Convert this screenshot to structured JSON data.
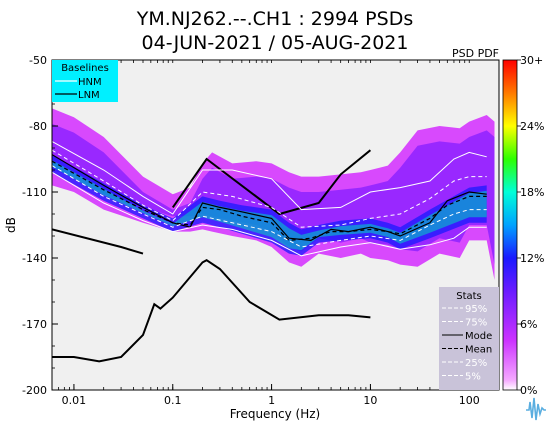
{
  "chart_data": {
    "type": "heatmap",
    "title": "YM.NJ262.--.CH1 : 2994 PSDs",
    "subtitle": "04-JUN-2021 / 05-AUG-2021",
    "xlabel": "Frequency (Hz)",
    "ylabel": "dB",
    "x_scale": "log",
    "xlim": [
      0.006,
      200
    ],
    "ylim": [
      -200,
      -50
    ],
    "xticks": [
      {
        "v": 0.01,
        "label": "0.01"
      },
      {
        "v": 0.1,
        "label": "0.1"
      },
      {
        "v": 1,
        "label": "1"
      },
      {
        "v": 10,
        "label": "10"
      },
      {
        "v": 100,
        "label": "100"
      }
    ],
    "yticks": [
      {
        "v": -50,
        "label": "-50"
      },
      {
        "v": -80,
        "label": "-80"
      },
      {
        "v": -110,
        "label": "-110"
      },
      {
        "v": -140,
        "label": "-140"
      },
      {
        "v": -170,
        "label": "-170"
      },
      {
        "v": -200,
        "label": "-200"
      }
    ],
    "pdf_label": "PSD PDF",
    "colorbar_ticks": [
      "30+",
      "24%",
      "18%",
      "12%",
      "6%",
      "0%"
    ],
    "colorbar_range_percent": [
      0,
      30
    ],
    "baselines_title": "Baselines",
    "baselines": [
      {
        "name": "HNM",
        "color": "#ffffff"
      },
      {
        "name": "LNM",
        "color": "#000000"
      }
    ],
    "stats_title": "Stats",
    "stats": [
      {
        "name": "95%",
        "style": "dashed",
        "color": "#ffffff"
      },
      {
        "name": "75%",
        "style": "dashed",
        "color": "#ffffff"
      },
      {
        "name": "Mode",
        "style": "solid",
        "color": "#000000"
      },
      {
        "name": "Mean",
        "style": "dashed",
        "color": "#000000"
      },
      {
        "name": "25%",
        "style": "dashed",
        "color": "#ffffff"
      },
      {
        "name": "5%",
        "style": "dashed",
        "color": "#ffffff"
      }
    ],
    "series": [
      {
        "name": "HNM",
        "x": [
          0.1,
          0.22,
          1.2,
          3,
          5,
          10
        ],
        "y": [
          -117,
          -95,
          -120,
          -115,
          -102,
          -91
        ]
      },
      {
        "name": "LNM",
        "x": [
          0.006,
          0.01,
          0.018,
          0.03,
          0.05,
          0.065,
          0.075,
          0.1,
          0.2,
          0.22,
          0.3,
          0.6,
          1.2,
          3,
          6,
          10
        ],
        "y": [
          -185,
          -185,
          -187,
          -185,
          -175,
          -161,
          -163,
          -158,
          -142,
          -141,
          -145,
          -160,
          -168,
          -166,
          -166,
          -167
        ]
      },
      {
        "name": "High NHNM (partial)",
        "x": [
          0.006,
          0.03,
          0.05
        ],
        "y": [
          -127,
          -135,
          -138
        ]
      },
      {
        "name": "Mode",
        "x": [
          0.006,
          0.02,
          0.05,
          0.1,
          0.15,
          0.2,
          0.3,
          0.5,
          1,
          1.5,
          2.5,
          4,
          6,
          10,
          15,
          20,
          40,
          60,
          100,
          150
        ],
        "y": [
          -93,
          -107,
          -117,
          -124,
          -126,
          -115,
          -117,
          -119,
          -122,
          -131,
          -132,
          -127,
          -128,
          -126,
          -128,
          -130,
          -124,
          -114,
          -110,
          -111
        ]
      },
      {
        "name": "Mean",
        "x": [
          0.006,
          0.02,
          0.05,
          0.1,
          0.15,
          0.2,
          0.3,
          0.5,
          1,
          1.5,
          2.5,
          4,
          6,
          10,
          15,
          20,
          40,
          60,
          100,
          150
        ],
        "y": [
          -96,
          -109,
          -118,
          -124,
          -125,
          -117,
          -118,
          -121,
          -124,
          -132,
          -131,
          -128,
          -128,
          -127,
          -128,
          -129,
          -122,
          -116,
          -112,
          -112
        ]
      },
      {
        "name": "95%",
        "x": [
          0.006,
          0.02,
          0.05,
          0.1,
          0.2,
          0.4,
          1,
          2,
          5,
          10,
          20,
          40,
          70,
          100,
          150
        ],
        "y": [
          -87,
          -100,
          -112,
          -120,
          -100,
          -100,
          -104,
          -118,
          -117,
          -110,
          -108,
          -105,
          -95,
          -92,
          -94
        ]
      },
      {
        "name": "75%",
        "x": [
          0.006,
          0.02,
          0.05,
          0.1,
          0.2,
          0.4,
          1,
          2,
          5,
          10,
          20,
          40,
          70,
          100,
          150
        ],
        "y": [
          -91,
          -105,
          -116,
          -123,
          -110,
          -112,
          -117,
          -126,
          -125,
          -122,
          -120,
          -113,
          -105,
          -103,
          -103
        ]
      },
      {
        "name": "25%",
        "x": [
          0.006,
          0.02,
          0.05,
          0.1,
          0.2,
          0.4,
          1,
          2,
          5,
          10,
          20,
          40,
          70,
          100,
          150
        ],
        "y": [
          -98,
          -112,
          -120,
          -126,
          -121,
          -124,
          -128,
          -135,
          -132,
          -130,
          -132,
          -125,
          -120,
          -118,
          -118
        ]
      },
      {
        "name": "5%",
        "x": [
          0.006,
          0.02,
          0.05,
          0.1,
          0.2,
          0.4,
          1,
          2,
          5,
          10,
          20,
          40,
          70,
          100,
          150
        ],
        "y": [
          -101,
          -115,
          -123,
          -128,
          -125,
          -127,
          -132,
          -139,
          -135,
          -133,
          -136,
          -134,
          -131,
          -126,
          -126
        ]
      }
    ],
    "density_envelope": {
      "x": [
        0.006,
        0.01,
        0.02,
        0.05,
        0.1,
        0.15,
        0.2,
        0.25,
        0.4,
        0.7,
        1,
        1.5,
        2,
        3,
        5,
        8,
        10,
        15,
        20,
        30,
        50,
        80,
        100,
        150,
        180
      ],
      "upper": [
        -72,
        -76,
        -85,
        -103,
        -111,
        -108,
        -97,
        -92,
        -97,
        -96,
        -97,
        -101,
        -103,
        -103,
        -102,
        -101,
        -100,
        -98,
        -92,
        -82,
        -80,
        -81,
        -78,
        -75,
        -78
      ],
      "lower": [
        -107,
        -110,
        -118,
        -124,
        -128,
        -128,
        -127,
        -128,
        -130,
        -132,
        -135,
        -142,
        -144,
        -138,
        -140,
        -138,
        -140,
        -141,
        -143,
        -144,
        -138,
        -140,
        -132,
        -132,
        -150
      ]
    },
    "band_envelope": {
      "x": [
        0.006,
        0.02,
        0.05,
        0.1,
        0.2,
        0.3,
        0.5,
        1,
        1.5,
        2,
        3,
        5,
        10,
        15,
        20,
        40,
        100,
        150
      ],
      "upper": [
        -93,
        -106,
        -116,
        -122,
        -112,
        -114,
        -116,
        -118,
        -124,
        -127,
        -125,
        -123,
        -122,
        -124,
        -126,
        -118,
        -108,
        -107
      ],
      "lower": [
        -101,
        -114,
        -122,
        -128,
        -124,
        -126,
        -129,
        -133,
        -138,
        -139,
        -133,
        -132,
        -131,
        -133,
        -136,
        -131,
        -124,
        -124
      ]
    },
    "grid": false,
    "legend_position": "top-left",
    "stats_legend_position": "bottom-right"
  }
}
